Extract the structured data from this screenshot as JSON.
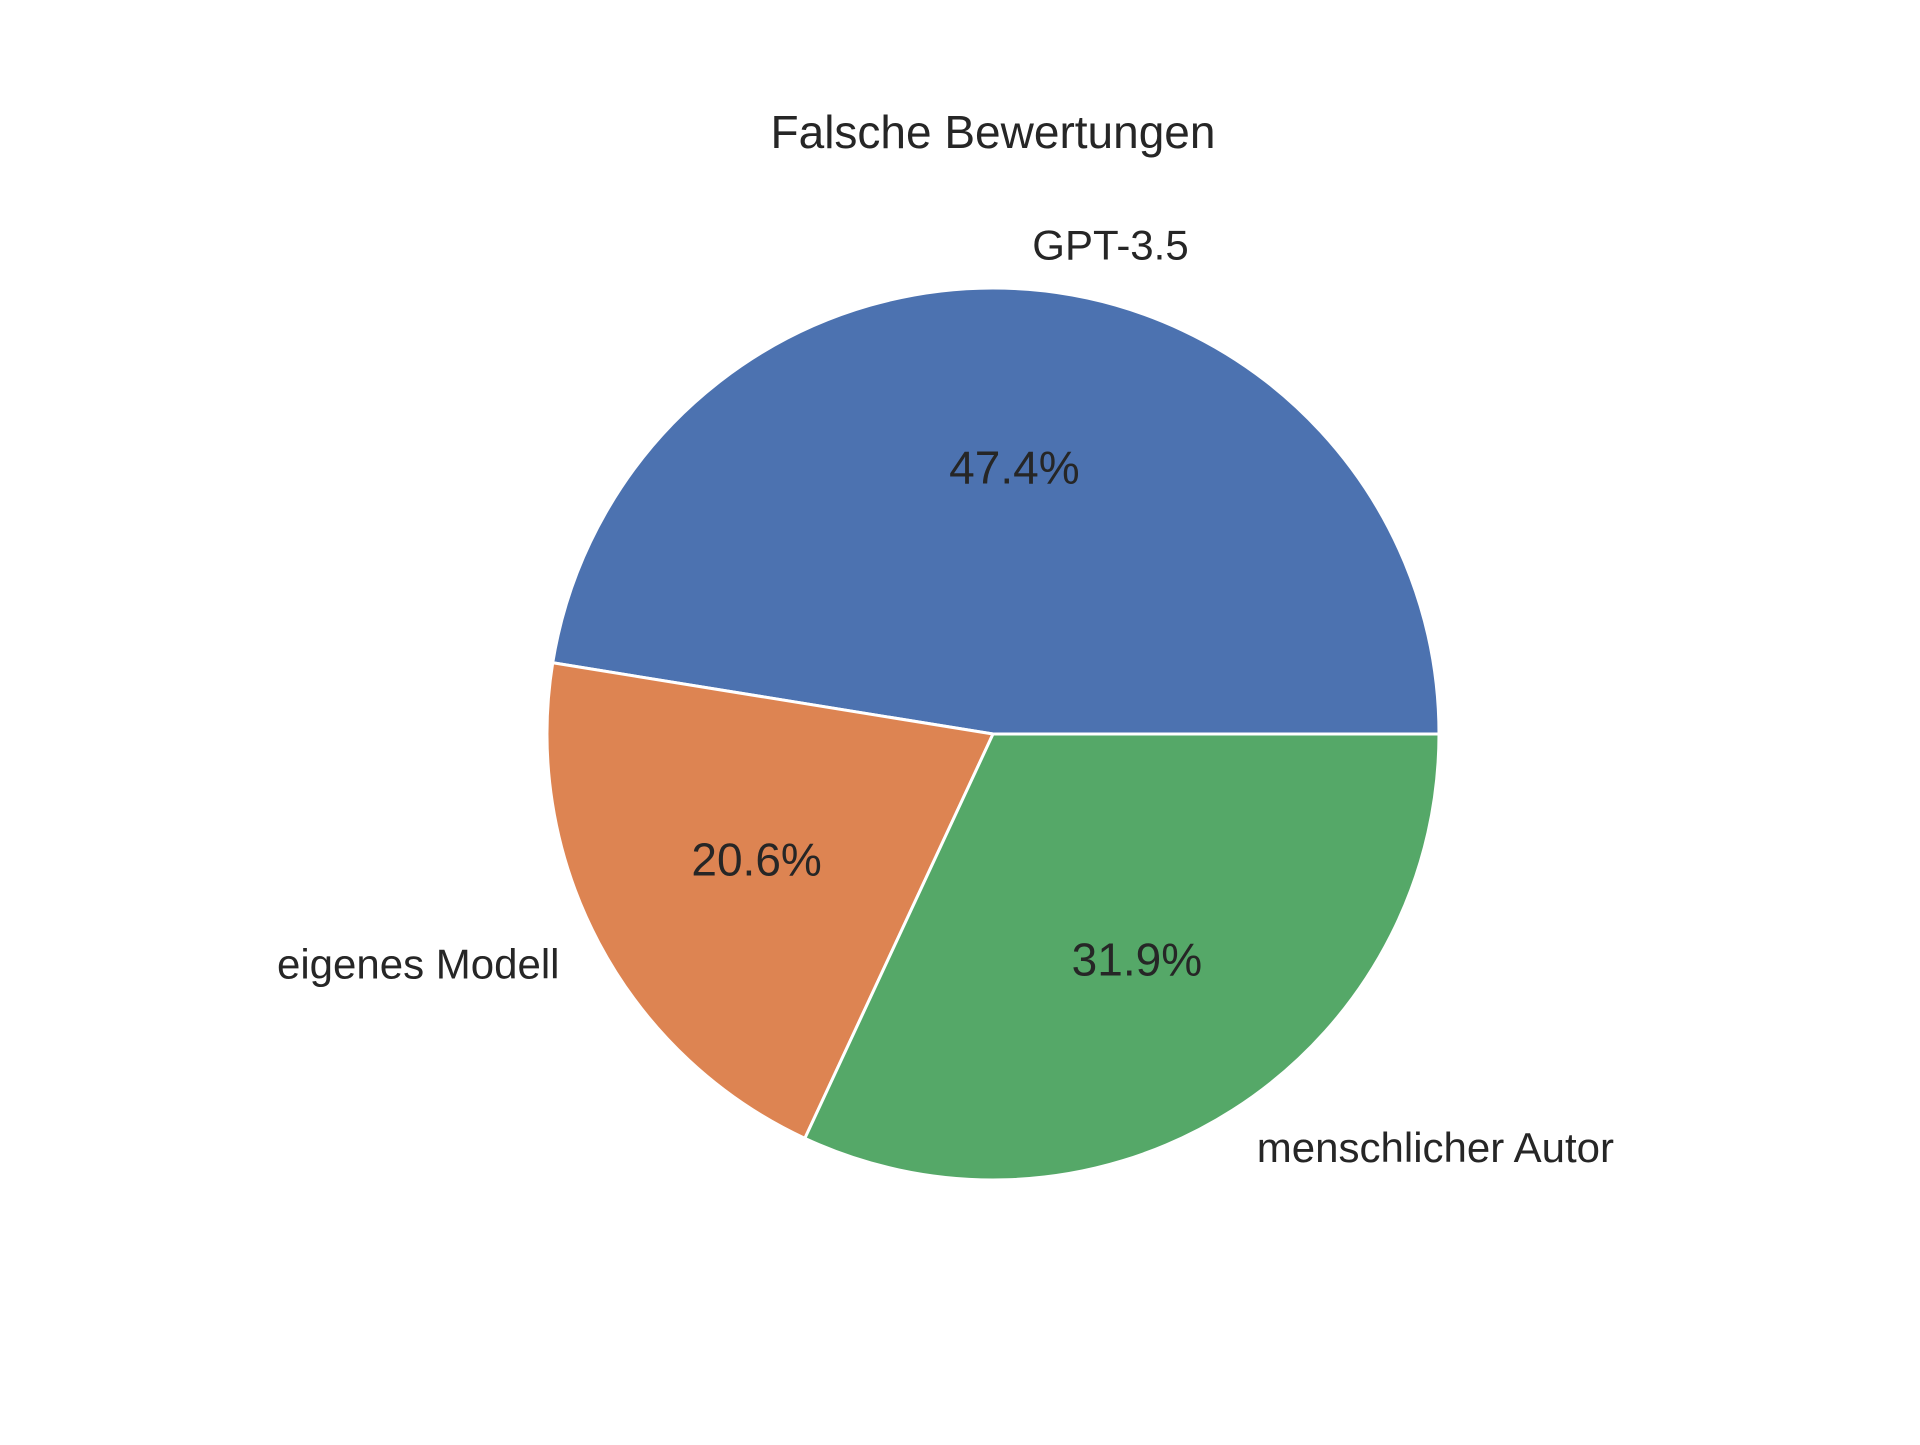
{
  "chart_data": {
    "type": "pie",
    "title": "Falsche Bewertungen",
    "slices": [
      {
        "label": "GPT-3.5",
        "value": 47.4,
        "pct_label": "47.4%",
        "color": "#4c72b0"
      },
      {
        "label": "eigenes Modell",
        "value": 20.6,
        "pct_label": "20.6%",
        "color": "#dd8452"
      },
      {
        "label": "menschlicher Autor",
        "value": 31.9,
        "pct_label": "31.9%",
        "color": "#55a868"
      }
    ],
    "start_angle_deg": 0,
    "direction": "counterclockwise",
    "edge_color": "#ffffff",
    "legend": "none"
  }
}
